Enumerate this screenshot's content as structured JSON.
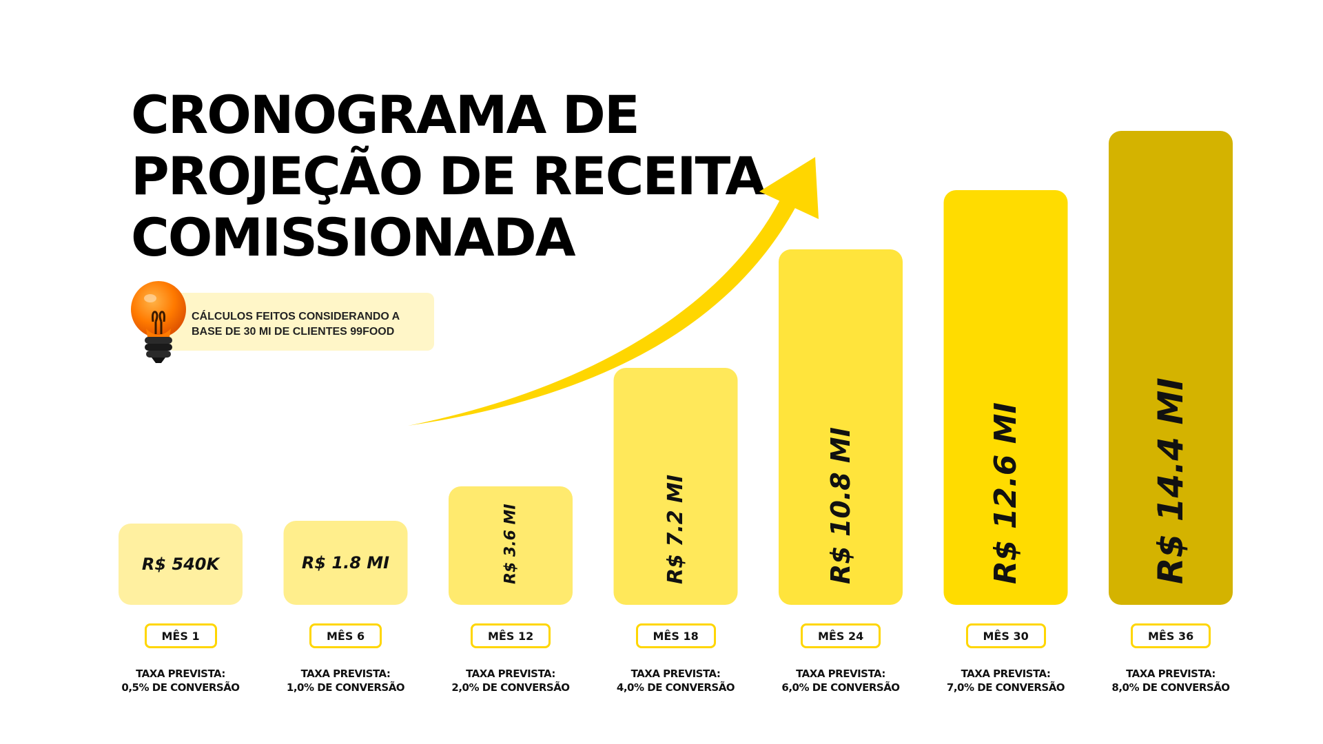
{
  "title": {
    "line1": "CRONOGRAMA DE",
    "line2": "PROJEÇÃO DE RECEITA",
    "line3": "COMISSIONADA"
  },
  "note": {
    "line1": "CÁLCULOS  FEITOS CONSIDERANDO A",
    "line2": "BASE DE 30 MI DE CLIENTES 99FOOD",
    "icon": "lightbulb-icon"
  },
  "chart_data": {
    "type": "bar",
    "categories": [
      "MÊS 1",
      "MÊS 6",
      "MÊS 12",
      "MÊS 18",
      "MÊS 24",
      "MÊS 30",
      "MÊS 36"
    ],
    "values": [
      0.54,
      1.8,
      3.6,
      7.2,
      10.8,
      12.6,
      14.4
    ],
    "value_labels": [
      "R$ 540K",
      "R$ 1.8 MI",
      "R$ 3.6 MI",
      "R$ 7.2 MI",
      "R$ 10.8 MI",
      "R$ 12.6 MI",
      "R$ 14.4 MI"
    ],
    "rates": [
      [
        "TAXA PREVISTA:",
        "0,5% DE CONVERSÃO"
      ],
      [
        "TAXA PREVISTA:",
        "1,0% DE CONVERSÃO"
      ],
      [
        "TAXA PREVISTA:",
        "2,0% DE CONVERSÃO"
      ],
      [
        "TAXA PREVISTA:",
        "4,0% DE CONVERSÃO"
      ],
      [
        "TAXA PREVISTA:",
        "6,0% DE CONVERSÃO"
      ],
      [
        "TAXA PREVISTA:",
        "7,0% DE CONVERSÃO"
      ],
      [
        "TAXA PREVISTA:",
        "8,0% DE CONVERSÃO"
      ]
    ],
    "colors": [
      "#fff0a0",
      "#ffee8c",
      "#ffea6e",
      "#ffe85a",
      "#ffe43c",
      "#ffdc00",
      "#d4b300"
    ],
    "arrow_color": "#ffd600"
  }
}
